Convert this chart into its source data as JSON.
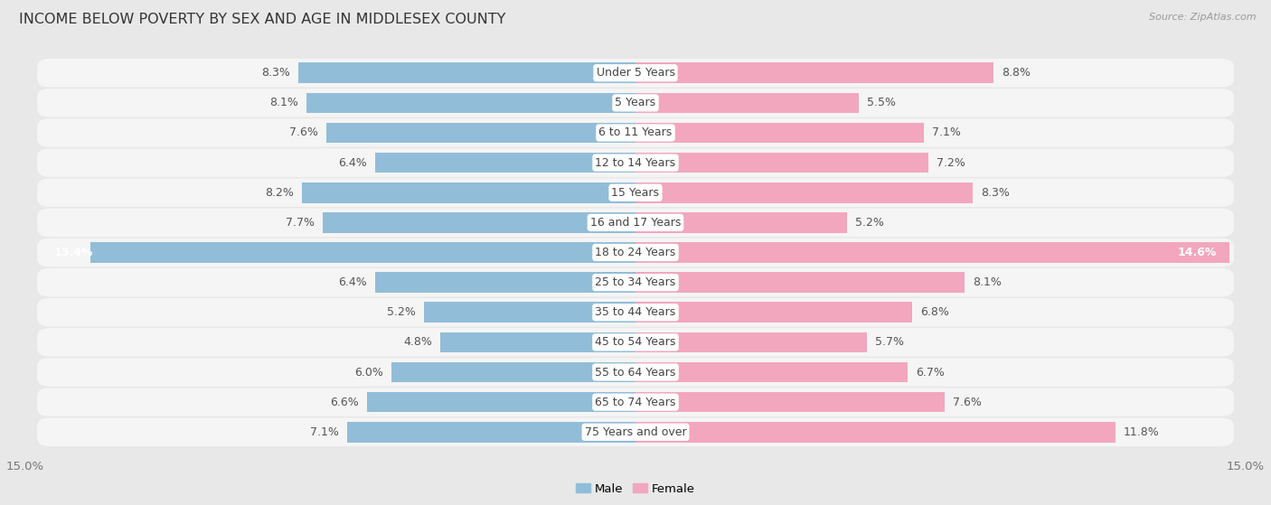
{
  "title": "INCOME BELOW POVERTY BY SEX AND AGE IN MIDDLESEX COUNTY",
  "source": "Source: ZipAtlas.com",
  "categories": [
    "Under 5 Years",
    "5 Years",
    "6 to 11 Years",
    "12 to 14 Years",
    "15 Years",
    "16 and 17 Years",
    "18 to 24 Years",
    "25 to 34 Years",
    "35 to 44 Years",
    "45 to 54 Years",
    "55 to 64 Years",
    "65 to 74 Years",
    "75 Years and over"
  ],
  "male": [
    8.3,
    8.1,
    7.6,
    6.4,
    8.2,
    7.7,
    13.4,
    6.4,
    5.2,
    4.8,
    6.0,
    6.6,
    7.1
  ],
  "female": [
    8.8,
    5.5,
    7.1,
    7.2,
    8.3,
    5.2,
    14.6,
    8.1,
    6.8,
    5.7,
    6.7,
    7.6,
    11.8
  ],
  "male_color": "#92bdd8",
  "female_color": "#f2a7be",
  "bg_color": "#e8e8e8",
  "bar_bg_color": "#f5f5f5",
  "xlim": 15.0,
  "title_fontsize": 11.5,
  "tick_fontsize": 9.5,
  "label_fontsize": 9,
  "category_fontsize": 9
}
